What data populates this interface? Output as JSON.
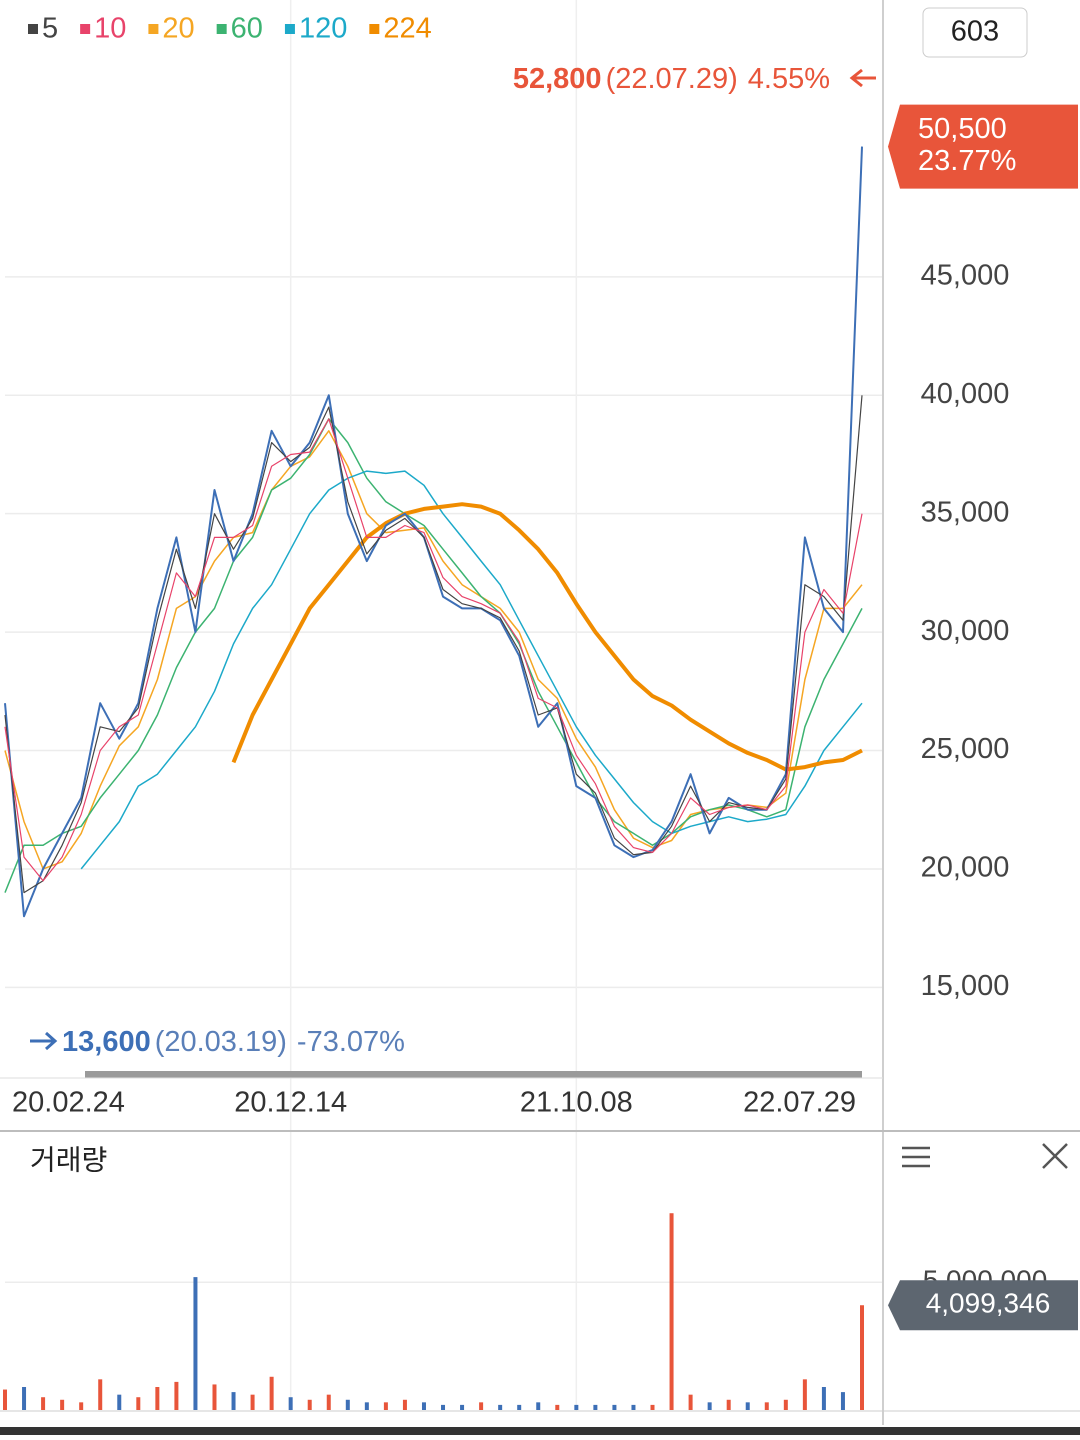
{
  "chart_data": [
    {
      "type": "line",
      "categories": [
        "20.02.24",
        null,
        null,
        null,
        null,
        null,
        null,
        null,
        null,
        null,
        null,
        null,
        null,
        null,
        null,
        "20.12.14",
        null,
        null,
        null,
        null,
        null,
        null,
        null,
        null,
        null,
        null,
        null,
        null,
        null,
        null,
        "21.10.08",
        null,
        null,
        null,
        null,
        null,
        null,
        null,
        null,
        null,
        null,
        null,
        null,
        null,
        null,
        "22.07.29"
      ],
      "values": [
        27000,
        18000,
        20000,
        21500,
        23000,
        27000,
        25500,
        27000,
        31000,
        34000,
        30000,
        36000,
        33000,
        35000,
        38500,
        37000,
        38000,
        40000,
        35000,
        33000,
        34500,
        35000,
        34000,
        31500,
        31000,
        31000,
        30500,
        29000,
        26000,
        27000,
        23500,
        23000,
        21000,
        20500,
        20800,
        22000,
        24000,
        21500,
        23000,
        22500,
        22500,
        24000,
        34000,
        31000,
        30000,
        50500
      ],
      "color": "#3d6fb6",
      "series": [
        {
          "name": "5",
          "color": "#444444",
          "values": [
            26500,
            19000,
            19500,
            21000,
            22800,
            26000,
            25800,
            26800,
            30500,
            33500,
            31000,
            35000,
            33500,
            34800,
            38000,
            37200,
            37800,
            39500,
            35500,
            33300,
            34300,
            34800,
            34000,
            31800,
            31200,
            31000,
            30600,
            29200,
            26500,
            26800,
            24000,
            23200,
            21300,
            20600,
            20700,
            21800,
            23500,
            22000,
            22800,
            22600,
            22500,
            23800,
            32000,
            31500,
            30500,
            40000
          ]
        },
        {
          "name": "10",
          "color": "#e8436a",
          "values": [
            26000,
            20500,
            19500,
            20500,
            22300,
            25000,
            26000,
            26500,
            29500,
            32500,
            31500,
            34000,
            34000,
            34500,
            37000,
            37500,
            37600,
            39000,
            36500,
            34000,
            34000,
            34500,
            34200,
            32300,
            31500,
            31200,
            30800,
            29600,
            27200,
            26800,
            24800,
            23600,
            21800,
            20900,
            20700,
            21500,
            23000,
            22300,
            22600,
            22700,
            22500,
            23500,
            30000,
            31800,
            30800,
            35000
          ]
        },
        {
          "name": "20",
          "color": "#f5a623",
          "values": [
            25000,
            22000,
            20000,
            20300,
            21500,
            23500,
            25200,
            26000,
            28000,
            31000,
            31500,
            33000,
            34000,
            34200,
            36000,
            37000,
            37400,
            38500,
            37000,
            35000,
            34200,
            34300,
            34400,
            33000,
            32000,
            31500,
            31000,
            30000,
            28000,
            27200,
            25500,
            24300,
            22500,
            21300,
            20900,
            21200,
            22300,
            22500,
            22600,
            22700,
            22600,
            23200,
            28000,
            31000,
            31000,
            32000
          ]
        },
        {
          "name": "60",
          "color": "#3cb371",
          "values": [
            19000,
            21000,
            21000,
            21500,
            21800,
            23000,
            24000,
            25000,
            26500,
            28500,
            30000,
            31000,
            33000,
            34000,
            36000,
            36500,
            37500,
            39000,
            38000,
            36500,
            35500,
            35000,
            34500,
            33500,
            32500,
            31500,
            30800,
            29500,
            27500,
            26000,
            24500,
            23000,
            22000,
            21500,
            21000,
            21500,
            22200,
            22500,
            22700,
            22500,
            22200,
            22500,
            26000,
            28000,
            29500,
            31000
          ]
        },
        {
          "name": "120",
          "color": "#1ca9c9",
          "values": [
            null,
            null,
            null,
            null,
            20000,
            21000,
            22000,
            23500,
            24000,
            25000,
            26000,
            27500,
            29500,
            31000,
            32000,
            33500,
            35000,
            36000,
            36500,
            36800,
            36700,
            36800,
            36200,
            35000,
            34000,
            33000,
            32000,
            30500,
            29000,
            27500,
            26000,
            24800,
            23800,
            22800,
            22000,
            21500,
            21800,
            22000,
            22200,
            22000,
            22100,
            22300,
            23500,
            25000,
            26000,
            27000
          ]
        },
        {
          "name": "224",
          "color": "#f08c00",
          "values": [
            null,
            null,
            null,
            null,
            null,
            null,
            null,
            null,
            null,
            null,
            null,
            null,
            24500,
            26500,
            28000,
            29500,
            31000,
            32000,
            33000,
            34000,
            34600,
            35000,
            35200,
            35300,
            35400,
            35300,
            35000,
            34300,
            33500,
            32500,
            31200,
            30000,
            29000,
            28000,
            27300,
            26900,
            26300,
            25800,
            25300,
            24900,
            24600,
            24200,
            24300,
            24500,
            24600,
            25000
          ]
        }
      ],
      "ylim": [
        11300,
        55000
      ],
      "yticks": [
        {
          "value": 15000,
          "label": "15,000"
        },
        {
          "value": 20000,
          "label": "20,000"
        },
        {
          "value": 25000,
          "label": "25,000"
        },
        {
          "value": 30000,
          "label": "30,000"
        },
        {
          "value": 35000,
          "label": "35,000"
        },
        {
          "value": 40000,
          "label": "40,000"
        },
        {
          "value": 45000,
          "label": "45,000"
        }
      ],
      "grid": true,
      "period": "603",
      "high": {
        "price": "52,800",
        "date": "(22.07.29)",
        "change": "4.55%"
      },
      "low": {
        "price": "13,600",
        "date": "(20.03.19)",
        "change": "-73.07%"
      },
      "price_tag": {
        "price": "50,500",
        "change": "23.77%"
      }
    },
    {
      "type": "bar",
      "title": "거래량",
      "values": [
        800000,
        900000,
        500000,
        400000,
        300000,
        1200000,
        600000,
        500000,
        900000,
        1100000,
        5200000,
        1000000,
        700000,
        600000,
        1300000,
        500000,
        400000,
        600000,
        400000,
        300000,
        300000,
        400000,
        300000,
        200000,
        200000,
        300000,
        200000,
        200000,
        300000,
        200000,
        200000,
        200000,
        200000,
        200000,
        200000,
        7700000,
        600000,
        300000,
        400000,
        300000,
        300000,
        400000,
        1200000,
        900000,
        700000,
        4099346
      ],
      "ylim": [
        0,
        9000000
      ],
      "yticks": [
        {
          "value": 5000000,
          "label": "5,000,000"
        }
      ],
      "value_tag": "4,099,346"
    }
  ]
}
